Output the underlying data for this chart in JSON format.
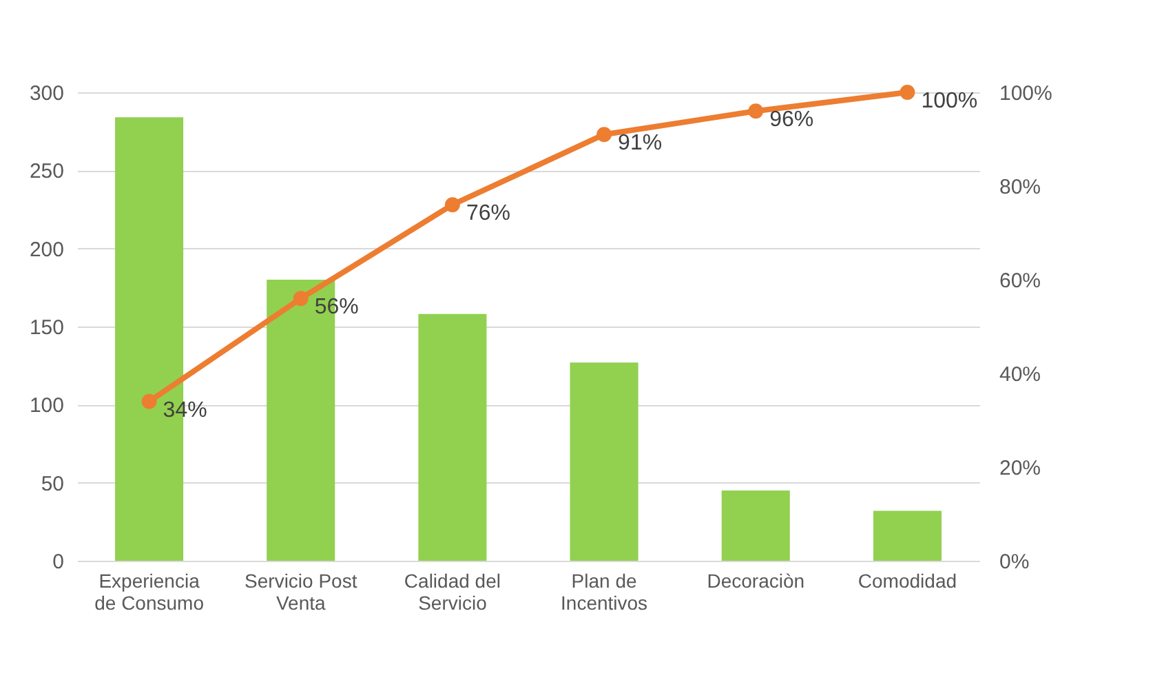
{
  "chart_data": {
    "type": "bar",
    "categories": [
      "Experiencia de Consumo",
      "Servicio Post Venta",
      "Calidad del Servicio",
      "Plan de Incentivos",
      "Decoraciòn",
      "Comodidad"
    ],
    "series": [
      {
        "color": "#92d050",
        "values": [
          284,
          180,
          158,
          127,
          45,
          32
        ]
      },
      {
        "type": "line",
        "axis": "y2",
        "color": "#ed7d31",
        "marker": "circle",
        "values": [
          34,
          56,
          76,
          91,
          96,
          100
        ],
        "value_labels": [
          "34%",
          "56%",
          "76%",
          "91%",
          "96%",
          "100%"
        ]
      }
    ],
    "ylim": [
      0,
      300
    ],
    "yticks": [
      0,
      50,
      100,
      150,
      200,
      250,
      300
    ],
    "y2lim": [
      0,
      100
    ],
    "y2ticks": [
      {
        "value": 0,
        "label": "0%"
      },
      {
        "value": 20,
        "label": "20%"
      },
      {
        "value": 40,
        "label": "40%"
      },
      {
        "value": 60,
        "label": "60%"
      },
      {
        "value": 80,
        "label": "80%"
      },
      {
        "value": 100,
        "label": "100%"
      }
    ],
    "grid": "y",
    "legend": false
  }
}
